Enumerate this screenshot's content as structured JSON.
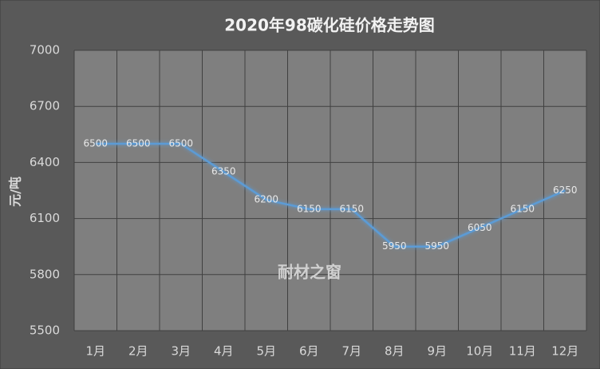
{
  "chart_data": {
    "type": "line",
    "title": "2020年98碳化硅价格走势图",
    "y_label": "元/吨",
    "annotation": "耐材之窗",
    "categories": [
      "1月",
      "2月",
      "3月",
      "4月",
      "5月",
      "6月",
      "7月",
      "8月",
      "9月",
      "10月",
      "11月",
      "12月"
    ],
    "values": [
      6500,
      6500,
      6500,
      6350,
      6200,
      6150,
      6150,
      5950,
      5950,
      6050,
      6150,
      6250
    ],
    "color": "#5b9bd5",
    "ylim": [
      5500,
      7000
    ],
    "yticks": [
      5500,
      5800,
      6100,
      6400,
      6700,
      7000
    ],
    "grid": true
  }
}
